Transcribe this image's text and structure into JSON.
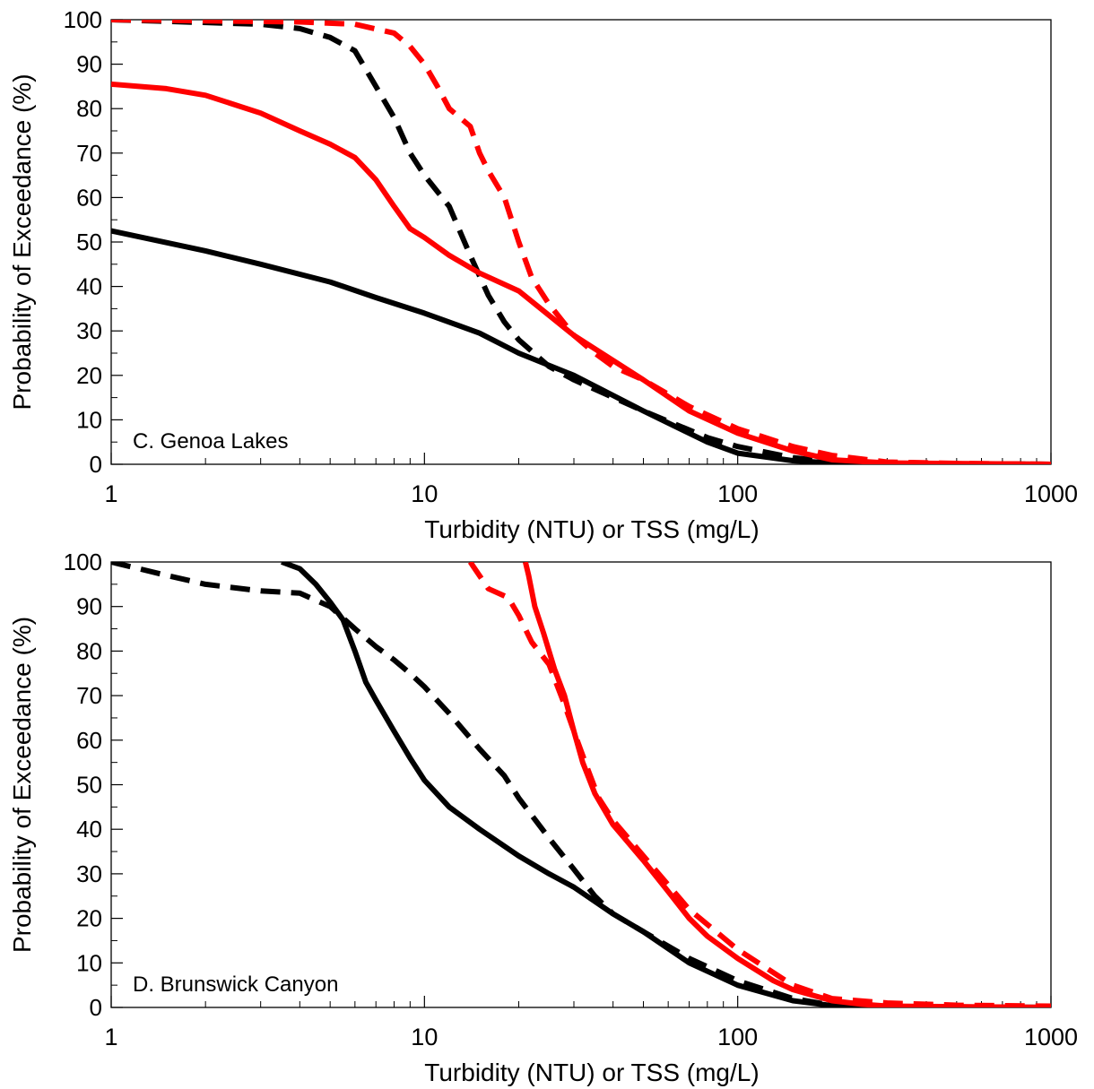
{
  "chart_data": [
    {
      "type": "line",
      "panel_label": "C. Genoa Lakes",
      "xlabel": "Turbidity (NTU) or TSS (mg/L)",
      "ylabel": "Probability of Exceedance (%)",
      "x_scale": "log",
      "xlim": [
        1,
        1000
      ],
      "ylim": [
        0,
        100
      ],
      "x_ticks": [
        1,
        10,
        100,
        1000
      ],
      "x_tick_labels": [
        "1",
        "10",
        "100",
        "1000"
      ],
      "y_ticks": [
        0,
        10,
        20,
        30,
        40,
        50,
        60,
        70,
        80,
        90,
        100
      ],
      "y_tick_labels": [
        "0",
        "10",
        "20",
        "30",
        "40",
        "50",
        "60",
        "70",
        "80",
        "90",
        "100"
      ],
      "grid": false,
      "series": [
        {
          "color": "#000000",
          "style": "solid",
          "points": [
            [
              1,
              52.5
            ],
            [
              2,
              48
            ],
            [
              3,
              45
            ],
            [
              5,
              41
            ],
            [
              7,
              37.5
            ],
            [
              10,
              34
            ],
            [
              15,
              29.5
            ],
            [
              20,
              25
            ],
            [
              30,
              20
            ],
            [
              50,
              12
            ],
            [
              80,
              5
            ],
            [
              100,
              2.5
            ],
            [
              150,
              0.8
            ],
            [
              200,
              0.3
            ],
            [
              300,
              0.1
            ],
            [
              1000,
              0
            ]
          ]
        },
        {
          "color": "#000000",
          "style": "dashed",
          "points": [
            [
              1,
              100
            ],
            [
              3,
              99
            ],
            [
              4,
              98
            ],
            [
              5,
              96
            ],
            [
              6,
              93
            ],
            [
              7,
              85
            ],
            [
              8,
              78
            ],
            [
              9,
              70
            ],
            [
              10,
              65
            ],
            [
              12,
              58
            ],
            [
              14,
              47
            ],
            [
              16,
              38
            ],
            [
              18,
              32
            ],
            [
              20,
              28
            ],
            [
              25,
              22
            ],
            [
              30,
              19
            ],
            [
              50,
              12
            ],
            [
              80,
              6
            ],
            [
              100,
              4
            ],
            [
              150,
              1.5
            ],
            [
              200,
              0.5
            ],
            [
              300,
              0.2
            ],
            [
              1000,
              0
            ]
          ]
        },
        {
          "color": "#ff0000",
          "style": "solid",
          "points": [
            [
              1,
              85.5
            ],
            [
              1.5,
              84.5
            ],
            [
              2,
              83
            ],
            [
              3,
              79
            ],
            [
              4,
              75
            ],
            [
              5,
              72
            ],
            [
              6,
              69
            ],
            [
              7,
              64
            ],
            [
              8,
              58
            ],
            [
              9,
              53
            ],
            [
              10,
              51
            ],
            [
              12,
              47
            ],
            [
              15,
              43
            ],
            [
              20,
              39
            ],
            [
              30,
              29
            ],
            [
              50,
              19
            ],
            [
              70,
              12
            ],
            [
              100,
              7
            ],
            [
              150,
              3
            ],
            [
              200,
              1
            ],
            [
              300,
              0.3
            ],
            [
              1000,
              0
            ]
          ]
        },
        {
          "color": "#ff0000",
          "style": "dashed",
          "points": [
            [
              1,
              100
            ],
            [
              4,
              99.5
            ],
            [
              6,
              99
            ],
            [
              8,
              97
            ],
            [
              9,
              94
            ],
            [
              10,
              90
            ],
            [
              11,
              85
            ],
            [
              12,
              80
            ],
            [
              14,
              76
            ],
            [
              15,
              70
            ],
            [
              16,
              66
            ],
            [
              18,
              60
            ],
            [
              20,
              50
            ],
            [
              22,
              42
            ],
            [
              25,
              36
            ],
            [
              30,
              29
            ],
            [
              35,
              25
            ],
            [
              40,
              22
            ],
            [
              50,
              19
            ],
            [
              70,
              13
            ],
            [
              100,
              8
            ],
            [
              150,
              4
            ],
            [
              200,
              2
            ],
            [
              300,
              0.5
            ],
            [
              500,
              0.2
            ],
            [
              1000,
              0
            ]
          ]
        }
      ]
    },
    {
      "type": "line",
      "panel_label": "D. Brunswick Canyon",
      "xlabel": "Turbidity (NTU) or TSS (mg/L)",
      "ylabel": "Probability of Exceedance (%)",
      "x_scale": "log",
      "xlim": [
        1,
        1000
      ],
      "ylim": [
        0,
        100
      ],
      "x_ticks": [
        1,
        10,
        100,
        1000
      ],
      "x_tick_labels": [
        "1",
        "10",
        "100",
        "1000"
      ],
      "y_ticks": [
        0,
        10,
        20,
        30,
        40,
        50,
        60,
        70,
        80,
        90,
        100
      ],
      "y_tick_labels": [
        "0",
        "10",
        "20",
        "30",
        "40",
        "50",
        "60",
        "70",
        "80",
        "90",
        "100"
      ],
      "grid": false,
      "series": [
        {
          "color": "#000000",
          "style": "solid",
          "points": [
            [
              3.5,
              100
            ],
            [
              4,
              98.5
            ],
            [
              4.5,
              95
            ],
            [
              5,
              91
            ],
            [
              5.5,
              87
            ],
            [
              6,
              80
            ],
            [
              6.5,
              73
            ],
            [
              7,
              69
            ],
            [
              8,
              62
            ],
            [
              9,
              56
            ],
            [
              10,
              51
            ],
            [
              12,
              45
            ],
            [
              15,
              40
            ],
            [
              20,
              34
            ],
            [
              25,
              30
            ],
            [
              30,
              27
            ],
            [
              40,
              21
            ],
            [
              50,
              17
            ],
            [
              70,
              10
            ],
            [
              100,
              5
            ],
            [
              150,
              1.5
            ],
            [
              200,
              0.4
            ],
            [
              300,
              0.1
            ],
            [
              1000,
              0
            ]
          ]
        },
        {
          "color": "#000000",
          "style": "dashed",
          "points": [
            [
              1,
              100
            ],
            [
              1.5,
              97
            ],
            [
              2,
              95
            ],
            [
              3,
              93.5
            ],
            [
              4,
              93
            ],
            [
              5,
              90
            ],
            [
              6,
              85
            ],
            [
              7,
              81
            ],
            [
              8,
              78
            ],
            [
              9,
              75
            ],
            [
              10,
              72
            ],
            [
              12,
              66
            ],
            [
              15,
              58
            ],
            [
              18,
              52
            ],
            [
              20,
              47
            ],
            [
              25,
              38
            ],
            [
              30,
              31
            ],
            [
              35,
              25
            ],
            [
              40,
              21
            ],
            [
              50,
              17
            ],
            [
              70,
              11
            ],
            [
              100,
              6
            ],
            [
              150,
              2
            ],
            [
              200,
              0.5
            ],
            [
              300,
              0.2
            ],
            [
              1000,
              0
            ]
          ]
        },
        {
          "color": "#ff0000",
          "style": "solid",
          "points": [
            [
              21,
              100
            ],
            [
              21.5,
              97
            ],
            [
              22.5,
              90
            ],
            [
              24,
              84
            ],
            [
              26,
              76
            ],
            [
              28,
              70
            ],
            [
              30,
              62
            ],
            [
              32,
              55
            ],
            [
              35,
              48
            ],
            [
              40,
              41
            ],
            [
              50,
              33
            ],
            [
              60,
              26
            ],
            [
              70,
              20
            ],
            [
              80,
              16
            ],
            [
              100,
              11
            ],
            [
              130,
              6
            ],
            [
              150,
              4
            ],
            [
              200,
              1.5
            ],
            [
              250,
              0.7
            ],
            [
              300,
              0.3
            ],
            [
              1000,
              0
            ]
          ]
        },
        {
          "color": "#ff0000",
          "style": "dashed",
          "points": [
            [
              14,
              100
            ],
            [
              16,
              94
            ],
            [
              18.5,
              92
            ],
            [
              20,
              88
            ],
            [
              22,
              82
            ],
            [
              25,
              77
            ],
            [
              28,
              68
            ],
            [
              30,
              62
            ],
            [
              33,
              54
            ],
            [
              36,
              47
            ],
            [
              40,
              42
            ],
            [
              50,
              34
            ],
            [
              70,
              22
            ],
            [
              100,
              13
            ],
            [
              150,
              5
            ],
            [
              200,
              2
            ],
            [
              300,
              1
            ],
            [
              500,
              0.5
            ],
            [
              1000,
              0.3
            ]
          ]
        }
      ]
    }
  ]
}
